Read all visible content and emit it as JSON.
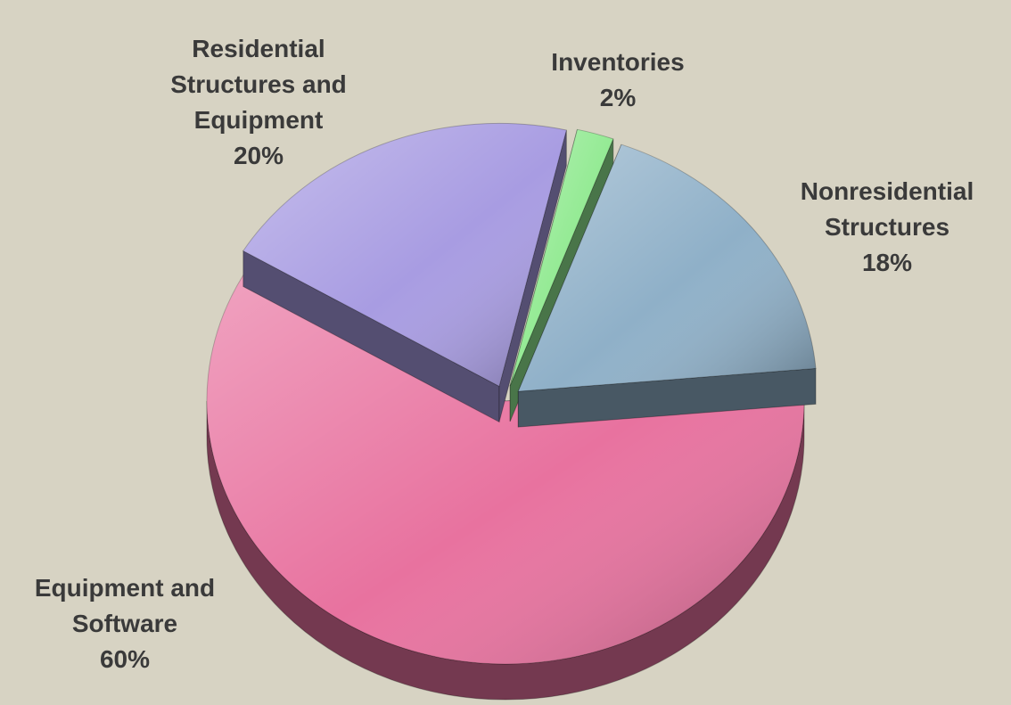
{
  "chart_data": {
    "type": "pie",
    "categories": [
      "Equipment and Software",
      "Residential Structures and Equipment",
      "Inventories",
      "Nonresidential Structures"
    ],
    "values": [
      60,
      20,
      2,
      18
    ],
    "value_labels": [
      "60%",
      "20%",
      "2%",
      "18%"
    ],
    "colors": [
      "#e8729f",
      "#a89ce2",
      "#92ea92",
      "#8fb0c8"
    ]
  }
}
